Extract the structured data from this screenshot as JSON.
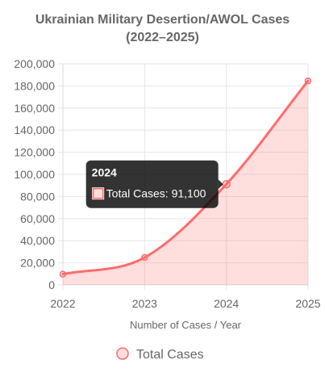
{
  "chart_data": {
    "type": "area",
    "title": [
      "Ukrainian Military Desertion/AWOL Cases",
      "(2022–2025)"
    ],
    "xlabel": "Number of Cases / Year",
    "ylabel": "",
    "categories": [
      "2022",
      "2023",
      "2024",
      "2025"
    ],
    "series": [
      {
        "name": "Total Cases",
        "values": [
          9800,
          24800,
          91100,
          184500
        ],
        "color": "#ff6b6b",
        "fill": "rgba(255,107,107,0.22)"
      }
    ],
    "ylim": [
      0,
      200000
    ],
    "yticks": [
      "0",
      "20,000",
      "40,000",
      "60,000",
      "80,000",
      "100,000",
      "120,000",
      "140,000",
      "160,000",
      "180,000",
      "200,000"
    ],
    "grid": true,
    "legend_position": "bottom",
    "tooltip": {
      "title": "2024",
      "label": "Total Cases: 91,100",
      "category_index": 2
    }
  }
}
